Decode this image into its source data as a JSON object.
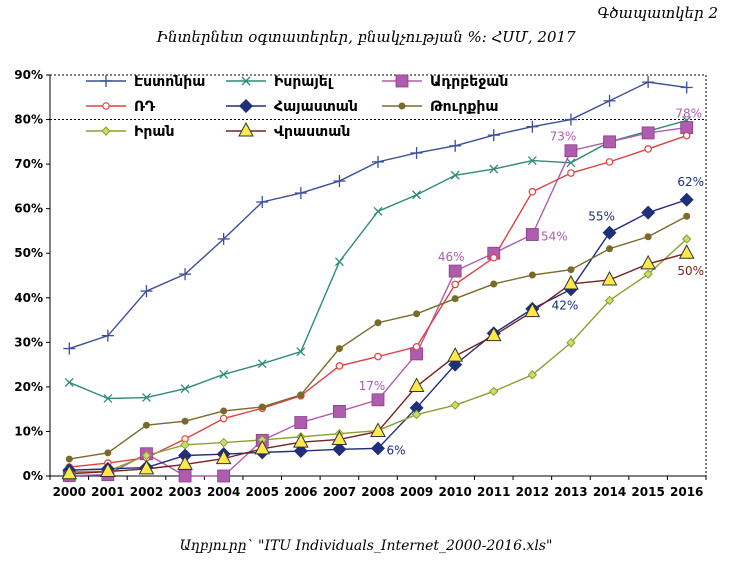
{
  "figure_label": "Գծապատկեր 2",
  "source": "Աղբյուրը` \"ITU Individuals_Internet_2000-2016.xls\"",
  "chart_data": {
    "type": "line",
    "title": "Ինտերնետ օգտատերեր, բնակչության %: ՀՍՄ, 2017",
    "xlabel": "",
    "ylabel": "",
    "x": [
      2000,
      2001,
      2002,
      2003,
      2004,
      2005,
      2006,
      2007,
      2008,
      2009,
      2010,
      2011,
      2012,
      2013,
      2014,
      2015,
      2016
    ],
    "ylim": [
      0,
      90
    ],
    "yticks": [
      0,
      10,
      20,
      30,
      40,
      50,
      60,
      70,
      80,
      90
    ],
    "ytick_labels": [
      "0%",
      "10%",
      "20%",
      "30%",
      "40%",
      "50%",
      "60%",
      "70%",
      "80%",
      "90%"
    ],
    "grid": false,
    "legend_position": "top-left",
    "series": [
      {
        "name": "Էստոնիա",
        "color": "#3b4f9a",
        "marker": "plus",
        "values": [
          28.6,
          31.5,
          41.5,
          45.3,
          53.2,
          61.5,
          63.5,
          66.2,
          70.5,
          72.5,
          74.1,
          76.5,
          78.4,
          80.0,
          84.2,
          88.4,
          87.2
        ]
      },
      {
        "name": "Իսրայել",
        "color": "#2e8b7a",
        "marker": "x",
        "values": [
          21.0,
          17.4,
          17.6,
          19.6,
          22.8,
          25.2,
          27.9,
          48.1,
          59.4,
          63.1,
          67.5,
          68.9,
          70.8,
          70.3,
          75.0,
          77.4,
          79.8
        ]
      },
      {
        "name": "Ադրբեջան",
        "color": "#b05cae",
        "marker": "square",
        "values": [
          0.1,
          0.3,
          5.0,
          0.0,
          0.0,
          8.0,
          12.0,
          14.5,
          17.1,
          27.4,
          46.0,
          50.0,
          54.2,
          73.0,
          75.0,
          77.0,
          78.2
        ]
      },
      {
        "name": "ՌԴ",
        "color": "#e04040",
        "marker": "circle",
        "values": [
          2.0,
          2.9,
          4.1,
          8.3,
          12.9,
          15.2,
          18.0,
          24.7,
          26.8,
          29.0,
          43.0,
          49.0,
          63.8,
          68.0,
          70.5,
          73.4,
          76.4
        ]
      },
      {
        "name": "Հայաստան",
        "color": "#1f2f7a",
        "marker": "diamond",
        "values": [
          1.3,
          1.6,
          1.9,
          4.6,
          4.9,
          5.3,
          5.6,
          6.0,
          6.2,
          15.3,
          25.0,
          32.0,
          37.5,
          41.9,
          54.6,
          59.1,
          62.0
        ]
      },
      {
        "name": "Թուրքիա",
        "color": "#7a6a2a",
        "marker": "dot",
        "values": [
          3.8,
          5.2,
          11.4,
          12.3,
          14.6,
          15.5,
          18.2,
          28.6,
          34.4,
          36.4,
          39.8,
          43.1,
          45.1,
          46.3,
          51.0,
          53.7,
          58.3
        ]
      },
      {
        "name": "Իրան",
        "color": "#8aa030",
        "marker": "small-diamond",
        "values": [
          0.9,
          1.1,
          4.6,
          7.0,
          7.5,
          8.1,
          8.8,
          9.5,
          10.2,
          13.8,
          15.9,
          19.0,
          22.7,
          29.9,
          39.4,
          45.3,
          53.2
        ]
      },
      {
        "name": "Վրաստան",
        "color": "#7a2020",
        "marker": "triangle",
        "values": [
          0.5,
          1.0,
          1.6,
          2.6,
          3.9,
          6.1,
          7.6,
          8.2,
          10.0,
          20.1,
          26.9,
          31.5,
          36.9,
          43.1,
          44.0,
          47.6,
          50.0
        ]
      }
    ],
    "annotations": [
      {
        "text": "78%",
        "x": 2016,
        "y": 78.2,
        "series": "Ադրբեջան"
      },
      {
        "text": "73%",
        "x": 2013,
        "y": 73.0,
        "series": "Ադրբեջան"
      },
      {
        "text": "54%",
        "x": 2012,
        "y": 54.2,
        "series": "Ադրբեջան"
      },
      {
        "text": "46%",
        "x": 2010,
        "y": 46.0,
        "series": "Ադրբեջան"
      },
      {
        "text": "17%",
        "x": 2008,
        "y": 17.1,
        "series": "Ադրբեջան"
      },
      {
        "text": "62%",
        "x": 2016,
        "y": 62.0,
        "series": "Հայաստան"
      },
      {
        "text": "55%",
        "x": 2014,
        "y": 54.6,
        "series": "Հայաստան"
      },
      {
        "text": "42%",
        "x": 2013,
        "y": 41.9,
        "series": "Հայաստան"
      },
      {
        "text": "6%",
        "x": 2008,
        "y": 6.2,
        "series": "Հայաստան"
      },
      {
        "text": "50%",
        "x": 2016,
        "y": 50.0,
        "series": "Վրաստան"
      }
    ]
  }
}
